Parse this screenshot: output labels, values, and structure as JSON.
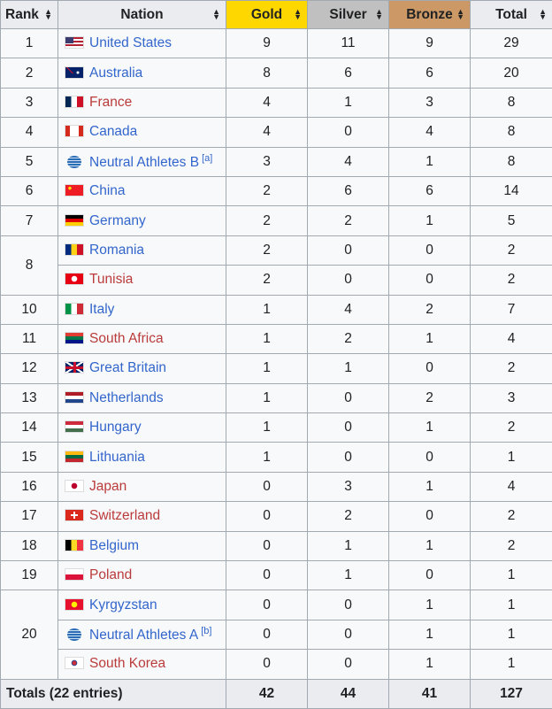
{
  "headers": {
    "rank": "Rank",
    "nation": "Nation",
    "gold": "Gold",
    "silver": "Silver",
    "bronze": "Bronze",
    "total": "Total"
  },
  "colors": {
    "gold": "#ffd700",
    "silver": "#c0c0c0",
    "bronze": "#cc9966",
    "link": "#3366cc",
    "link_visited": "#ba3b3b"
  },
  "sort_icon": "sort-arrows-icon",
  "rows": [
    {
      "rank": "1",
      "nation": "United States",
      "flag": "usa-flag-icon",
      "gold": 9,
      "silver": 11,
      "bronze": 9,
      "total": 29
    },
    {
      "rank": "2",
      "nation": "Australia",
      "flag": "australia-flag-icon",
      "gold": 8,
      "silver": 6,
      "bronze": 6,
      "total": 20
    },
    {
      "rank": "3",
      "nation": "France",
      "flag": "france-flag-icon",
      "visited": true,
      "gold": 4,
      "silver": 1,
      "bronze": 3,
      "total": 8
    },
    {
      "rank": "4",
      "nation": "Canada",
      "flag": "canada-flag-icon",
      "gold": 4,
      "silver": 0,
      "bronze": 4,
      "total": 8
    },
    {
      "rank": "5",
      "nation": "Neutral Athletes B",
      "note": "[a]",
      "flag": "neutral-athletes-icon",
      "gold": 3,
      "silver": 4,
      "bronze": 1,
      "total": 8
    },
    {
      "rank": "6",
      "nation": "China",
      "flag": "china-flag-icon",
      "gold": 2,
      "silver": 6,
      "bronze": 6,
      "total": 14
    },
    {
      "rank": "7",
      "nation": "Germany",
      "flag": "germany-flag-icon",
      "gold": 2,
      "silver": 2,
      "bronze": 1,
      "total": 5
    },
    {
      "rank": "8",
      "rankspan": 2,
      "nation": "Romania",
      "flag": "romania-flag-icon",
      "gold": 2,
      "silver": 0,
      "bronze": 0,
      "total": 2
    },
    {
      "rank": "",
      "nation": "Tunisia",
      "flag": "tunisia-flag-icon",
      "visited": true,
      "gold": 2,
      "silver": 0,
      "bronze": 0,
      "total": 2
    },
    {
      "rank": "10",
      "nation": "Italy",
      "flag": "italy-flag-icon",
      "gold": 1,
      "silver": 4,
      "bronze": 2,
      "total": 7
    },
    {
      "rank": "11",
      "nation": "South Africa",
      "flag": "south-africa-flag-icon",
      "visited": true,
      "gold": 1,
      "silver": 2,
      "bronze": 1,
      "total": 4
    },
    {
      "rank": "12",
      "nation": "Great Britain",
      "flag": "uk-flag-icon",
      "gold": 1,
      "silver": 1,
      "bronze": 0,
      "total": 2
    },
    {
      "rank": "13",
      "nation": "Netherlands",
      "flag": "netherlands-flag-icon",
      "gold": 1,
      "silver": 0,
      "bronze": 2,
      "total": 3
    },
    {
      "rank": "14",
      "nation": "Hungary",
      "flag": "hungary-flag-icon",
      "gold": 1,
      "silver": 0,
      "bronze": 1,
      "total": 2
    },
    {
      "rank": "15",
      "nation": "Lithuania",
      "flag": "lithuania-flag-icon",
      "gold": 1,
      "silver": 0,
      "bronze": 0,
      "total": 1
    },
    {
      "rank": "16",
      "nation": "Japan",
      "flag": "japan-flag-icon",
      "visited": true,
      "gold": 0,
      "silver": 3,
      "bronze": 1,
      "total": 4
    },
    {
      "rank": "17",
      "nation": "Switzerland",
      "flag": "switzerland-flag-icon",
      "visited": true,
      "gold": 0,
      "silver": 2,
      "bronze": 0,
      "total": 2
    },
    {
      "rank": "18",
      "nation": "Belgium",
      "flag": "belgium-flag-icon",
      "gold": 0,
      "silver": 1,
      "bronze": 1,
      "total": 2
    },
    {
      "rank": "19",
      "nation": "Poland",
      "flag": "poland-flag-icon",
      "visited": true,
      "gold": 0,
      "silver": 1,
      "bronze": 0,
      "total": 1
    },
    {
      "rank": "20",
      "rankspan": 3,
      "nation": "Kyrgyzstan",
      "flag": "kyrgyzstan-flag-icon",
      "gold": 0,
      "silver": 0,
      "bronze": 1,
      "total": 1
    },
    {
      "rank": "",
      "nation": "Neutral Athletes A",
      "note": "[b]",
      "flag": "neutral-athletes-icon",
      "gold": 0,
      "silver": 0,
      "bronze": 1,
      "total": 1
    },
    {
      "rank": "",
      "nation": "South Korea",
      "flag": "south-korea-flag-icon",
      "visited": true,
      "gold": 0,
      "silver": 0,
      "bronze": 1,
      "total": 1
    }
  ],
  "totals": {
    "label": "Totals (22 entries)",
    "gold": 42,
    "silver": 44,
    "bronze": 41,
    "total": 127
  }
}
